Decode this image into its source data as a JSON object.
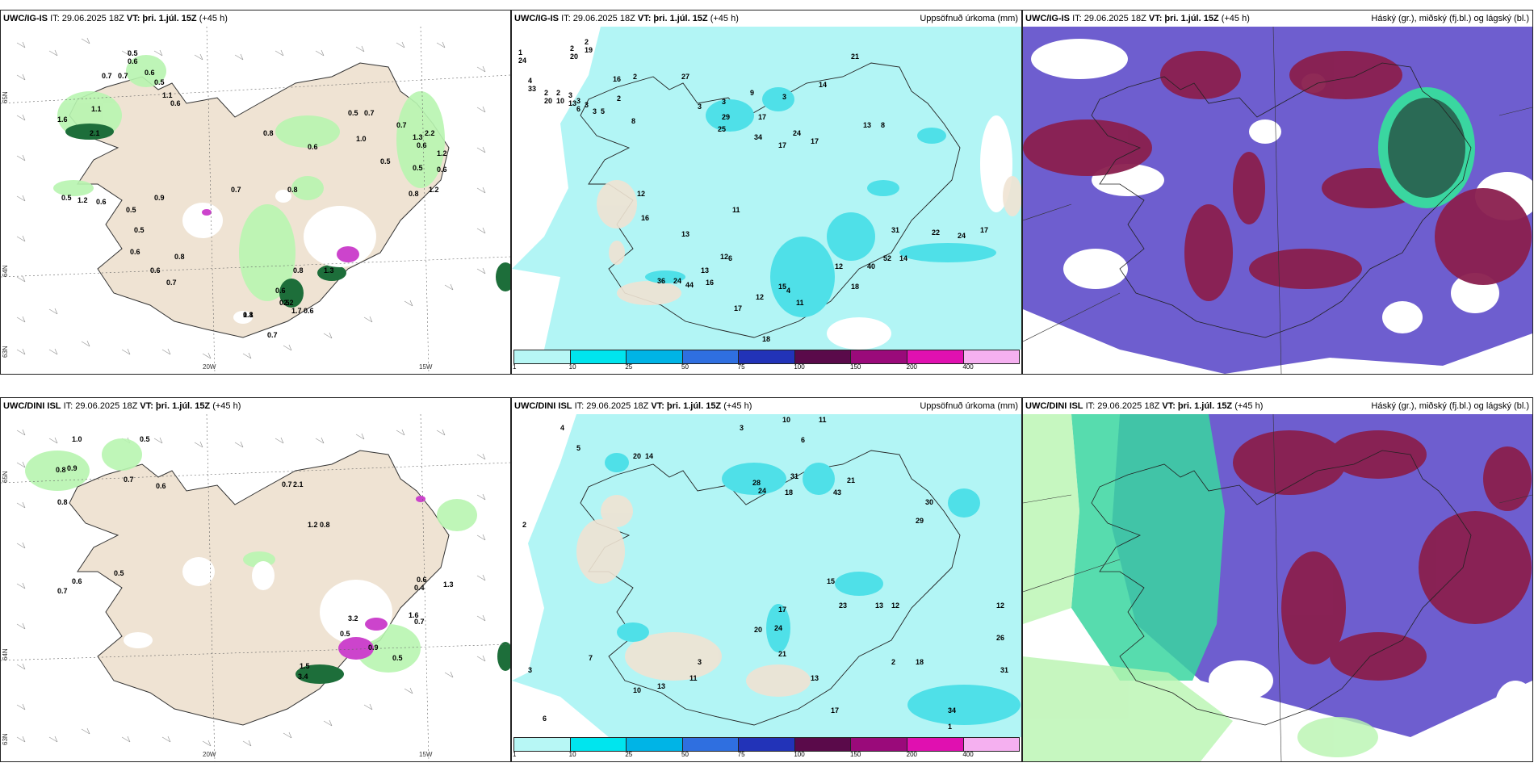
{
  "panels": {
    "p1": {
      "model": "UWC/IG-IS",
      "it": "IT: 29.06.2025 18Z",
      "vt": "VT: þri. 1.júl. 15Z",
      "lead": "(+45 h)",
      "right": ""
    },
    "p2": {
      "model": "UWC/IG-IS",
      "it": "IT: 29.06.2025 18Z",
      "vt": "VT: þri. 1.júl. 15Z",
      "lead": "(+45 h)",
      "right": "Uppsöfnuð úrkoma (mm)"
    },
    "p3": {
      "model": "UWC/IG-IS",
      "it": "IT: 29.06.2025 18Z",
      "vt": "VT: þri. 1.júl. 15Z",
      "lead": "(+45 h)",
      "right": "Háský (gr.), miðský (fj.bl.) og lágský (bl.)"
    },
    "p4": {
      "model": "UWC/DINI ISL",
      "it": "IT: 29.06.2025 18Z",
      "vt": "VT: þri. 1.júl. 15Z",
      "lead": "(+45 h)",
      "right": ""
    },
    "p5": {
      "model": "UWC/DINI ISL",
      "it": "IT: 29.06.2025 18Z",
      "vt": "VT: þri. 1.júl. 15Z",
      "lead": "(+45 h)",
      "right": "Uppsöfnuð úrkoma (mm)"
    },
    "p6": {
      "model": "UWC/DINI ISL",
      "it": "IT: 29.06.2025 18Z",
      "vt": "VT: þri. 1.júl. 15Z",
      "lead": "(+45 h)",
      "right": "Háský (gr.), miðský (fj.bl.) og lágský (bl.)"
    }
  },
  "axes": {
    "lon1": "20W",
    "lon2": "15W",
    "lat1": "65N",
    "lat2": "64N",
    "lat3": "63N"
  },
  "colorbar": {
    "ticks": [
      "1",
      "10",
      "25",
      "50",
      "75",
      "100",
      "150",
      "200",
      "400"
    ],
    "colors": [
      "#b7f7f5",
      "#00e5ee",
      "#00b4e6",
      "#2f6fe0",
      "#2233b8",
      "#5a0a4a",
      "#9a0a7a",
      "#e010b0",
      "#f5b0f0"
    ]
  },
  "colors": {
    "land": "#efe3d3",
    "sea_precip": "#b2f5f5",
    "precip_mid": "#4fe0e8",
    "green_light": "#b8f5b0",
    "green_dark": "#1d6e3a",
    "magenta": "#cc44cc",
    "high_cloud": "#6655cc",
    "mid_cloud": "#8a1f4e",
    "low_cloud": "#3ad6a0"
  },
  "labels": {
    "p1": [
      "0.5",
      "0.7",
      "0.7",
      "0.6",
      "0.5",
      "1.1",
      "0.6",
      "1.1",
      "1.6",
      "2.1",
      "0.8",
      "0.5",
      "0.7",
      "1.0",
      "0.6",
      "0.7",
      "2.2",
      "1.3",
      "0.6",
      "0.5",
      "0.5",
      "0.6",
      "1.2",
      "0.8",
      "0.7",
      "0.9",
      "0.8",
      "0.5",
      "0.5",
      "1.2",
      "0.6",
      "0.5",
      "0.6",
      "0.8",
      "0.6",
      "0.8",
      "1.3",
      "0.6",
      "0.7",
      "0.6",
      "2.2",
      "1.7",
      "0.8",
      "0.7",
      "0.5",
      "1.1",
      "1.2",
      "0.6"
    ],
    "p2": [
      "2",
      "2",
      "1",
      "4",
      "2",
      "2",
      "3",
      "3",
      "3",
      "3",
      "5",
      "16",
      "2",
      "2",
      "8",
      "3",
      "3",
      "9",
      "3",
      "27",
      "29",
      "25",
      "17",
      "34",
      "14",
      "17",
      "24",
      "17",
      "21",
      "13",
      "8",
      "12",
      "11",
      "13",
      "12",
      "6",
      "13",
      "17",
      "12",
      "15",
      "11",
      "4",
      "18",
      "12",
      "40",
      "52",
      "14",
      "22",
      "24",
      "17",
      "31",
      "36",
      "24",
      "44",
      "16",
      "18",
      "16",
      "19",
      "20",
      "24",
      "33",
      "20",
      "10",
      "13",
      "6"
    ],
    "p3": [],
    "p4": [
      "1.0",
      "0.5",
      "0.8",
      "0.9",
      "0.8",
      "0.7",
      "0.6",
      "0.7",
      "2.1",
      "1.2",
      "0.8",
      "0.5",
      "0.6",
      "0.7",
      "0.6",
      "0.4",
      "3.2",
      "0.5",
      "1.6",
      "0.7",
      "0.9",
      "1.3",
      "3.4",
      "1.5",
      "0.5"
    ],
    "p5": [
      "3",
      "4",
      "5",
      "10",
      "11",
      "6",
      "20",
      "14",
      "2",
      "28",
      "24",
      "31",
      "43",
      "21",
      "18",
      "30",
      "29",
      "13",
      "12",
      "23",
      "15",
      "17",
      "24",
      "21",
      "20",
      "18",
      "34",
      "31",
      "26",
      "12",
      "13",
      "17",
      "2",
      "1",
      "3",
      "6",
      "10",
      "7",
      "13",
      "11",
      "3"
    ],
    "p6": []
  }
}
